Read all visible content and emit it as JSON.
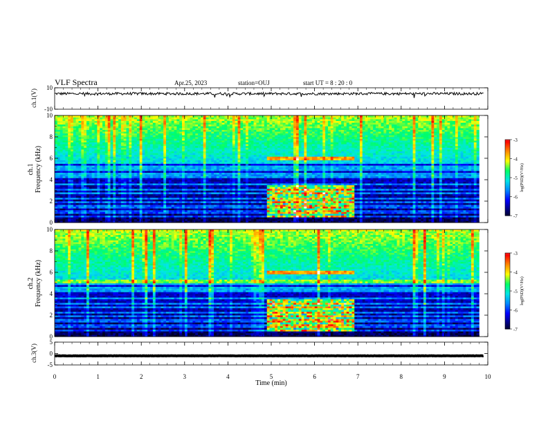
{
  "header": {
    "title": "VLF Spectra",
    "date": "Apr.25, 2023",
    "station": "station=OUJ",
    "start": "start  UT =   8 : 20 : 0"
  },
  "colors": {
    "scale": [
      "#000000",
      "#00007a",
      "#0000ff",
      "#0088ff",
      "#00e6e6",
      "#00ff66",
      "#ffff00",
      "#ff8800",
      "#ff0000",
      "#ffffff"
    ]
  },
  "chart_data": [
    {
      "type": "line",
      "name": "ch1-waveform",
      "ylabel": "ch.1(V)",
      "ylim": [
        -10,
        10
      ],
      "yticks": [
        "10",
        "-10"
      ],
      "xlim": [
        0,
        10
      ],
      "baseline": 4.5,
      "amplitude": 1.2
    },
    {
      "type": "heatmap",
      "name": "ch1-spectrogram",
      "ylabel_channel": "ch.1",
      "ylabel": "Frequency  (kHz)",
      "ylim": [
        0,
        10
      ],
      "yticks": [
        "0",
        "2",
        "4",
        "6",
        "8",
        "10"
      ],
      "xlim": [
        0,
        10
      ],
      "colorbar": {
        "label": "log(PSD)(V²/Hz)",
        "range": [
          -7,
          -3
        ],
        "ticks": [
          "-3",
          "-4",
          "-5",
          "-6",
          "-7"
        ]
      },
      "features": {
        "background_cutoff_khz": 5.5,
        "enhanced_interval_min": [
          4.9,
          6.9
        ],
        "enhanced_band_khz": [
          0.5,
          3.5
        ],
        "emission_line_khz": 6.0
      }
    },
    {
      "type": "heatmap",
      "name": "ch2-spectrogram",
      "ylabel_channel": "ch.2",
      "ylabel": "Frequency  (kHz)",
      "ylim": [
        0,
        10
      ],
      "yticks": [
        "0",
        "2",
        "4",
        "6",
        "8",
        "10"
      ],
      "xlim": [
        0,
        10
      ],
      "colorbar": {
        "label": "log(PSD)(V²/Hz)",
        "range": [
          -7,
          -3
        ],
        "ticks": [
          "-3",
          "-4",
          "-5",
          "-6",
          "-7"
        ]
      },
      "features": {
        "background_cutoff_khz": 5.0,
        "enhanced_interval_min": [
          4.9,
          6.9
        ],
        "enhanced_band_khz": [
          0.5,
          3.5
        ],
        "emission_line_khz": 6.0
      }
    },
    {
      "type": "line",
      "name": "ch3-waveform",
      "ylabel": "ch.3(V)",
      "ylim": [
        -5,
        5
      ],
      "yticks": [
        "5",
        "0",
        "-5"
      ],
      "xlim": [
        0,
        10
      ],
      "baseline": -1.0,
      "amplitude": 0.15
    }
  ],
  "xaxis": {
    "label": "Time  (min)",
    "ticks": [
      "0",
      "1",
      "2",
      "3",
      "4",
      "5",
      "6",
      "7",
      "8",
      "9",
      "10"
    ],
    "data_end_min": 9.8
  }
}
